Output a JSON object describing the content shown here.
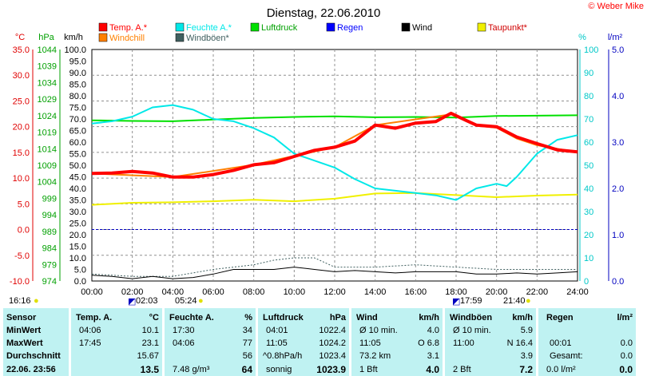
{
  "chart_data": {
    "type": "line",
    "title": "Dienstag, 22.06.2010",
    "credit": "© Weber Mike",
    "axes": {
      "temp": {
        "unit": "°C",
        "min": -10,
        "max": 35,
        "ticks": [
          "35.0",
          "30.0",
          "25.0",
          "20.0",
          "15.0",
          "10.0",
          "5.0",
          "0.0",
          "-5.0",
          "-10.0"
        ],
        "color": "#e00000"
      },
      "pressure": {
        "unit": "hPa",
        "min": 974,
        "max": 1044,
        "ticks": [
          "1044",
          "1039",
          "1034",
          "1029",
          "1024",
          "1019",
          "1014",
          "1009",
          "1004",
          "999",
          "994",
          "989",
          "984",
          "979",
          "974"
        ],
        "color": "#00a000"
      },
      "wind": {
        "unit": "km/h",
        "min": 0,
        "max": 100,
        "ticks": [
          "100.0",
          "95.0",
          "90.0",
          "85.0",
          "80.0",
          "75.0",
          "70.0",
          "65.0",
          "60.0",
          "55.0",
          "50.0",
          "45.0",
          "40.0",
          "35.0",
          "30.0",
          "25.0",
          "20.0",
          "15.0",
          "10.0",
          "5.0",
          "0.0"
        ],
        "color": "#000000"
      },
      "humidity": {
        "unit": "%",
        "min": 0,
        "max": 100,
        "ticks": [
          "100",
          "90",
          "80",
          "70",
          "60",
          "50",
          "40",
          "30",
          "20",
          "10",
          "0"
        ],
        "color": "#00c8c8"
      },
      "rain": {
        "unit": "l/m²",
        "min": 0,
        "max": 5,
        "ticks": [
          "5.0",
          "4.0",
          "3.0",
          "2.0",
          "1.0",
          "0.0"
        ],
        "color": "#0000c0"
      }
    },
    "x": {
      "ticks": [
        "00:00",
        "02:00",
        "04:00",
        "06:00",
        "08:00",
        "10:00",
        "12:00",
        "14:00",
        "16:00",
        "18:00",
        "20:00",
        "22:00",
        "24:00"
      ],
      "min_hours": 0,
      "max_hours": 24
    },
    "grid": true,
    "legend": [
      {
        "name": "Temp. A.*",
        "color": "#ff0000"
      },
      {
        "name": "Feuchte A.*",
        "color": "#00e8e8"
      },
      {
        "name": "Luftdruck",
        "color": "#00e000"
      },
      {
        "name": "Regen",
        "color": "#0000ff"
      },
      {
        "name": "Wind",
        "color": "#000000"
      },
      {
        "name": "Taupunkt*",
        "color": "#f0f000"
      },
      {
        "name": "Windchill",
        "color": "#ff8000"
      },
      {
        "name": "Windböen*",
        "color": "#406060"
      }
    ],
    "series": [
      {
        "name": "Temp. A.*",
        "axis": "temp",
        "color": "#ff0000",
        "points": [
          [
            0,
            10.9
          ],
          [
            1,
            11.0
          ],
          [
            2,
            11.3
          ],
          [
            3,
            11.0
          ],
          [
            4,
            10.2
          ],
          [
            5,
            10.2
          ],
          [
            6,
            10.7
          ],
          [
            7,
            11.5
          ],
          [
            8,
            12.6
          ],
          [
            9,
            13.0
          ],
          [
            10,
            14.2
          ],
          [
            11,
            15.4
          ],
          [
            12,
            16.0
          ],
          [
            13,
            17.2
          ],
          [
            14,
            20.3
          ],
          [
            15,
            19.7
          ],
          [
            16,
            20.7
          ],
          [
            17,
            21.0
          ],
          [
            17.75,
            22.6
          ],
          [
            18.5,
            21.2
          ],
          [
            19,
            20.3
          ],
          [
            20,
            20.0
          ],
          [
            21,
            18.0
          ],
          [
            22,
            16.7
          ],
          [
            23,
            15.5
          ],
          [
            24,
            15.1
          ]
        ]
      },
      {
        "name": "Windchill",
        "axis": "temp",
        "color": "#ff8000",
        "points": [
          [
            0,
            10.9
          ],
          [
            4,
            10.2
          ],
          [
            8,
            12.6
          ],
          [
            12,
            16.0
          ],
          [
            14,
            20.3
          ],
          [
            17.75,
            22.4
          ],
          [
            19,
            20.2
          ],
          [
            20,
            19.8
          ],
          [
            21,
            17.7
          ],
          [
            22,
            16.4
          ],
          [
            24,
            15.0
          ]
        ]
      },
      {
        "name": "Feuchte A.*",
        "axis": "humidity",
        "color": "#00e8e8",
        "points": [
          [
            0,
            68
          ],
          [
            1,
            69
          ],
          [
            2,
            71
          ],
          [
            3,
            75
          ],
          [
            4,
            76
          ],
          [
            5,
            74
          ],
          [
            6,
            70
          ],
          [
            7,
            69
          ],
          [
            8,
            66
          ],
          [
            9,
            62
          ],
          [
            10,
            55
          ],
          [
            11,
            52
          ],
          [
            12,
            49
          ],
          [
            13,
            44
          ],
          [
            14,
            40
          ],
          [
            15,
            39
          ],
          [
            16,
            38
          ],
          [
            17,
            37
          ],
          [
            18,
            35
          ],
          [
            19,
            40
          ],
          [
            20,
            42
          ],
          [
            20.5,
            41
          ],
          [
            21,
            45
          ],
          [
            22,
            55
          ],
          [
            23,
            61
          ],
          [
            24,
            63
          ]
        ]
      },
      {
        "name": "Luftdruck",
        "axis": "pressure",
        "color": "#00e000",
        "points": [
          [
            0,
            1022.6
          ],
          [
            2,
            1022.4
          ],
          [
            4,
            1022.3
          ],
          [
            6,
            1022.8
          ],
          [
            8,
            1023.3
          ],
          [
            10,
            1023.6
          ],
          [
            12,
            1023.8
          ],
          [
            14,
            1023.5
          ],
          [
            16,
            1023.6
          ],
          [
            18,
            1023.4
          ],
          [
            20,
            1023.9
          ],
          [
            22,
            1024.0
          ],
          [
            24,
            1024.1
          ]
        ]
      },
      {
        "name": "Taupunkt*",
        "axis": "temp",
        "color": "#f0f000",
        "points": [
          [
            0,
            4.8
          ],
          [
            2,
            5.2
          ],
          [
            4,
            5.3
          ],
          [
            6,
            5.5
          ],
          [
            8,
            5.8
          ],
          [
            10,
            5.5
          ],
          [
            12,
            6.0
          ],
          [
            14,
            7.0
          ],
          [
            16,
            7.1
          ],
          [
            18,
            6.7
          ],
          [
            20,
            6.3
          ],
          [
            22,
            6.6
          ],
          [
            24,
            6.8
          ]
        ]
      },
      {
        "name": "Wind",
        "axis": "wind",
        "color": "#000000",
        "points": [
          [
            0,
            2.5
          ],
          [
            1,
            2
          ],
          [
            2,
            1
          ],
          [
            3,
            2
          ],
          [
            4,
            1
          ],
          [
            5,
            1.5
          ],
          [
            6,
            3
          ],
          [
            7,
            5
          ],
          [
            8,
            5
          ],
          [
            9,
            5
          ],
          [
            10,
            6
          ],
          [
            11,
            5
          ],
          [
            12,
            4
          ],
          [
            13,
            4.5
          ],
          [
            14,
            4
          ],
          [
            15,
            3.5
          ],
          [
            16,
            4
          ],
          [
            17,
            4
          ],
          [
            18,
            4
          ],
          [
            19,
            3
          ],
          [
            20,
            3
          ],
          [
            21,
            3.5
          ],
          [
            22,
            3
          ],
          [
            23,
            3.5
          ],
          [
            24,
            4
          ]
        ]
      },
      {
        "name": "Windböen*",
        "axis": "wind",
        "color": "#406060",
        "points": [
          [
            0,
            3
          ],
          [
            2,
            2
          ],
          [
            4,
            2
          ],
          [
            6,
            5
          ],
          [
            8,
            7
          ],
          [
            9,
            9
          ],
          [
            10,
            10
          ],
          [
            11,
            10
          ],
          [
            12,
            6
          ],
          [
            14,
            6
          ],
          [
            16,
            7
          ],
          [
            18,
            6
          ],
          [
            20,
            5
          ],
          [
            22,
            5
          ],
          [
            24,
            5
          ]
        ]
      }
    ],
    "reference_line": {
      "axis": "temp",
      "value": 0,
      "color": "#0000c0",
      "style": "dashed"
    }
  },
  "sun": {
    "sunrise_label": "16:16",
    "sunrise_time": "05:24",
    "sunset_time": "21:40",
    "moonrise": "02:03",
    "moonset": "17:59"
  },
  "table": {
    "sensor": {
      "header": "Sensor",
      "minwert": "MinWert",
      "maxwert": "MaxWert",
      "durchschnitt": "Durchschnitt",
      "date": "22.06. 23:56"
    },
    "temp": {
      "header": "Temp. A.",
      "unit": "°C",
      "min_time": "04:06",
      "min_val": "10.1",
      "max_time": "17:45",
      "max_val": "23.1",
      "avg": "15.67",
      "current": "13.5"
    },
    "feuchte": {
      "header": "Feuchte A.",
      "unit": "%",
      "min_time": "17:30",
      "min_val": "34",
      "max_time": "04:06",
      "max_val": "77",
      "avg": "56",
      "abs": "7.48 g/m³",
      "current": "64"
    },
    "luftdruck": {
      "header": "Luftdruck",
      "unit": "hPa",
      "min_time": "04:01",
      "min_val": "1022.4",
      "max_time": "11:05",
      "max_val": "1024.2",
      "trend_label": "^0.8hPa/h",
      "trend_val": "1023.4",
      "weather": "sonnig",
      "current": "1023.9"
    },
    "wind": {
      "header": "Wind",
      "unit": "km/h",
      "min_label": "Ø 10 min.",
      "min_val": "4.0",
      "max_time": "11:05",
      "max_dir": "O 6.8",
      "dist": "73.2 km",
      "avg": "3.1",
      "beaufort": "1 Bft",
      "current": "4.0"
    },
    "windboeen": {
      "header": "Windböen",
      "unit": "km/h",
      "min_label": "Ø 10 min.",
      "min_val": "5.9",
      "max_time": "11:00",
      "max_dir": "N 16.4",
      "avg": "3.9",
      "beaufort": "2 Bft",
      "current": "7.2"
    },
    "regen": {
      "header": "Regen",
      "unit": "l/m²",
      "max_time": "00:01",
      "max_val": "0.0",
      "gesamt_label": "Gesamt:",
      "gesamt_val": "0.0",
      "current_label": "0.0 l/m²",
      "current": "0.0"
    }
  }
}
